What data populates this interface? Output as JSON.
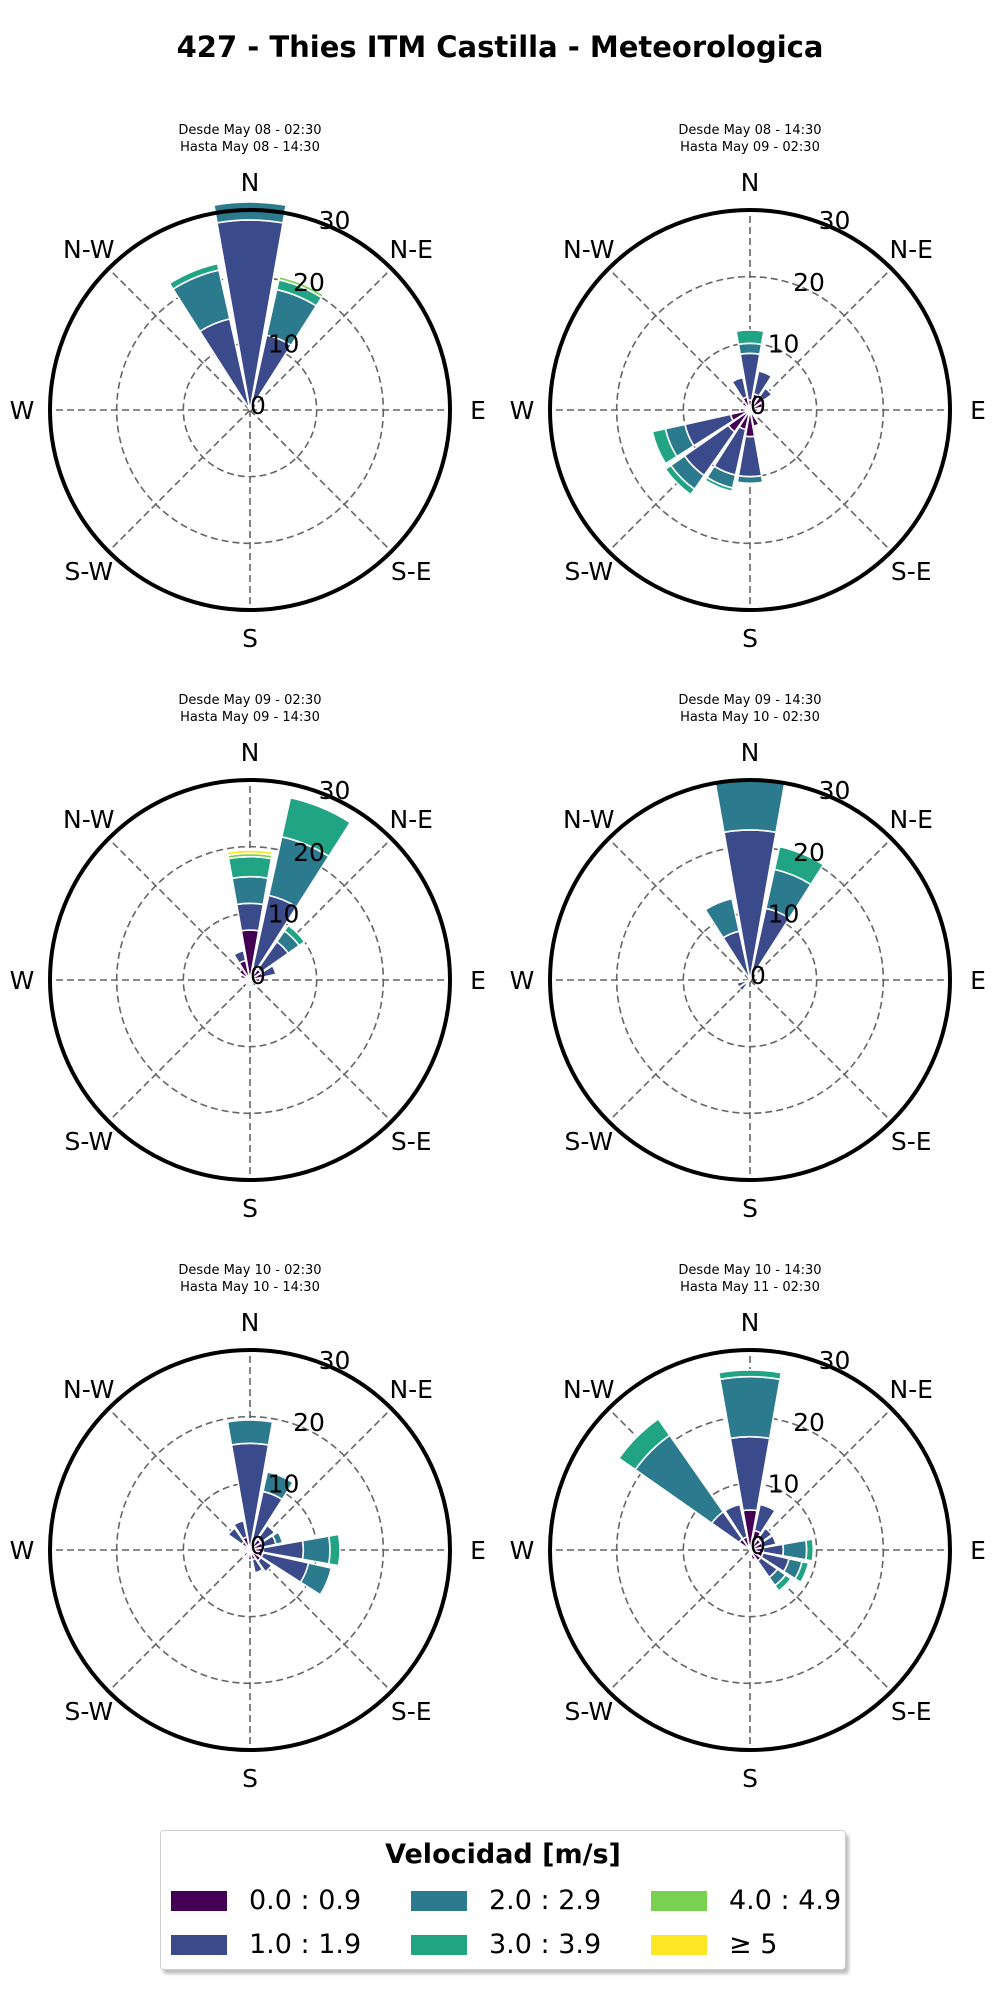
{
  "title": "427 - Thies ITM Castilla - Meteorologica",
  "directions": [
    "N",
    "N-E",
    "E",
    "S-E",
    "S",
    "S-W",
    "W",
    "N-W"
  ],
  "radial_ticks": [
    "0",
    "10",
    "20",
    "30"
  ],
  "legend": {
    "title": "Velocidad [m/s]",
    "items": [
      {
        "label": "0.0 : 0.9",
        "color": "#440154"
      },
      {
        "label": "1.0 : 1.9",
        "color": "#3b4a8a"
      },
      {
        "label": "2.0 : 2.9",
        "color": "#2c7a8e"
      },
      {
        "label": "3.0 : 3.9",
        "color": "#21a484"
      },
      {
        "label": "4.0 : 4.9",
        "color": "#78d151"
      },
      {
        "label": "≥ 5",
        "color": "#fde725"
      }
    ]
  },
  "chart_data": [
    {
      "type": "windrose",
      "subtitle": [
        "Desde May 08 - 02:30",
        "Hasta May 08 - 14:30"
      ],
      "rmax": 30,
      "sectors": [
        {
          "dir": 337.5,
          "segments": [
            0,
            14,
            7.5,
            1
          ]
        },
        {
          "dir": 0,
          "segments": [
            0,
            28.5,
            2.7
          ]
        },
        {
          "dir": 22.5,
          "segments": [
            0,
            11.5,
            7,
            1.5,
            0.5
          ]
        }
      ]
    },
    {
      "type": "windrose",
      "subtitle": [
        "Desde May 08 - 14:30",
        "Hasta May 09 - 02:30"
      ],
      "rmax": 30,
      "sectors": [
        {
          "dir": 0,
          "segments": [
            1.5,
            7,
            1.5,
            2
          ]
        },
        {
          "dir": 22.5,
          "segments": [
            2.5,
            3.5
          ]
        },
        {
          "dir": 45,
          "segments": [
            2.5,
            1.5
          ]
        },
        {
          "dir": 67.5,
          "segments": [
            2
          ]
        },
        {
          "dir": 135,
          "segments": [
            1
          ]
        },
        {
          "dir": 157.5,
          "segments": [
            2.5
          ]
        },
        {
          "dir": 180,
          "segments": [
            4,
            6,
            1
          ]
        },
        {
          "dir": 202.5,
          "segments": [
            3,
            7,
            2,
            0.5
          ]
        },
        {
          "dir": 225,
          "segments": [
            4,
            8,
            2.5,
            1
          ]
        },
        {
          "dir": 247.5,
          "segments": [
            3,
            7,
            3,
            2
          ]
        },
        {
          "dir": 270,
          "segments": [
            1.5
          ]
        },
        {
          "dir": 292.5,
          "segments": [
            1
          ]
        },
        {
          "dir": 315,
          "segments": [
            1.5
          ]
        },
        {
          "dir": 337.5,
          "segments": [
            2,
            3
          ]
        }
      ]
    },
    {
      "type": "windrose",
      "subtitle": [
        "Desde May 09 - 02:30",
        "Hasta May 09 - 14:30"
      ],
      "rmax": 30,
      "sectors": [
        {
          "dir": 0,
          "segments": [
            7.5,
            4,
            4,
            3,
            0.5,
            0.5
          ]
        },
        {
          "dir": 22.5,
          "segments": [
            2,
            11,
            9,
            6
          ]
        },
        {
          "dir": 45,
          "segments": [
            2,
            5,
            2,
            1
          ]
        },
        {
          "dir": 67.5,
          "segments": [
            2,
            2
          ]
        },
        {
          "dir": 90,
          "segments": [
            1.5
          ]
        },
        {
          "dir": 112.5,
          "segments": [
            1
          ]
        },
        {
          "dir": 157.5,
          "segments": [
            1
          ]
        },
        {
          "dir": 180,
          "segments": [
            1
          ]
        },
        {
          "dir": 202.5,
          "segments": [
            1
          ]
        },
        {
          "dir": 225,
          "segments": [
            1.5
          ]
        },
        {
          "dir": 247.5,
          "segments": [
            1
          ]
        },
        {
          "dir": 270,
          "segments": [
            1
          ]
        },
        {
          "dir": 292.5,
          "segments": [
            1.5
          ]
        },
        {
          "dir": 315,
          "segments": [
            2
          ]
        },
        {
          "dir": 337.5,
          "segments": [
            3,
            1.5
          ]
        }
      ]
    },
    {
      "type": "windrose",
      "subtitle": [
        "Desde May 09 - 14:30",
        "Hasta May 10 - 02:30"
      ],
      "rmax": 30,
      "sectors": [
        {
          "dir": 0,
          "segments": [
            0,
            22.5,
            7.5
          ]
        },
        {
          "dir": 22.5,
          "segments": [
            0,
            11,
            6,
            3.5
          ]
        },
        {
          "dir": 337.5,
          "segments": [
            0,
            7.5,
            5
          ]
        },
        {
          "dir": 225,
          "segments": [
            0,
            2
          ]
        },
        {
          "dir": 247.5,
          "segments": [
            0,
            2
          ]
        }
      ]
    },
    {
      "type": "windrose",
      "subtitle": [
        "Desde May 10 - 02:30",
        "Hasta May 10 - 14:30"
      ],
      "rmax": 30,
      "sectors": [
        {
          "dir": 0,
          "segments": [
            0,
            16,
            3.5
          ]
        },
        {
          "dir": 22.5,
          "segments": [
            1,
            8,
            3
          ]
        },
        {
          "dir": 45,
          "segments": [
            2,
            2.5
          ]
        },
        {
          "dir": 67.5,
          "segments": [
            2,
            2,
            1
          ]
        },
        {
          "dir": 90,
          "segments": [
            2,
            6,
            4,
            1.5
          ]
        },
        {
          "dir": 112.5,
          "segments": [
            2,
            7,
            3.5
          ]
        },
        {
          "dir": 135,
          "segments": [
            2,
            2
          ]
        },
        {
          "dir": 157.5,
          "segments": [
            1.5,
            2
          ]
        },
        {
          "dir": 180,
          "segments": [
            1.5
          ]
        },
        {
          "dir": 202.5,
          "segments": [
            1
          ]
        },
        {
          "dir": 247.5,
          "segments": [
            1
          ]
        },
        {
          "dir": 270,
          "segments": [
            1
          ]
        },
        {
          "dir": 292.5,
          "segments": [
            1
          ]
        },
        {
          "dir": 315,
          "segments": [
            1.5,
            2.5
          ]
        },
        {
          "dir": 337.5,
          "segments": [
            2,
            2.5
          ]
        }
      ]
    },
    {
      "type": "windrose",
      "subtitle": [
        "Desde May 10 - 14:30",
        "Hasta May 11 - 02:30"
      ],
      "rmax": 30,
      "sectors": [
        {
          "dir": 0,
          "segments": [
            6,
            11,
            9,
            1
          ]
        },
        {
          "dir": 22.5,
          "segments": [
            3,
            4
          ]
        },
        {
          "dir": 45,
          "segments": [
            2,
            2
          ]
        },
        {
          "dir": 67.5,
          "segments": [
            2,
            2
          ]
        },
        {
          "dir": 90,
          "segments": [
            2,
            3,
            3.5,
            1
          ]
        },
        {
          "dir": 112.5,
          "segments": [
            2,
            4,
            2,
            1
          ]
        },
        {
          "dir": 135,
          "segments": [
            2,
            3,
            1.5,
            1
          ]
        },
        {
          "dir": 157.5,
          "segments": [
            1.5
          ]
        },
        {
          "dir": 180,
          "segments": [
            1
          ]
        },
        {
          "dir": 315,
          "segments": [
            2,
            5,
            14,
            3
          ]
        },
        {
          "dir": 337.5,
          "segments": [
            2,
            5
          ]
        }
      ]
    }
  ]
}
